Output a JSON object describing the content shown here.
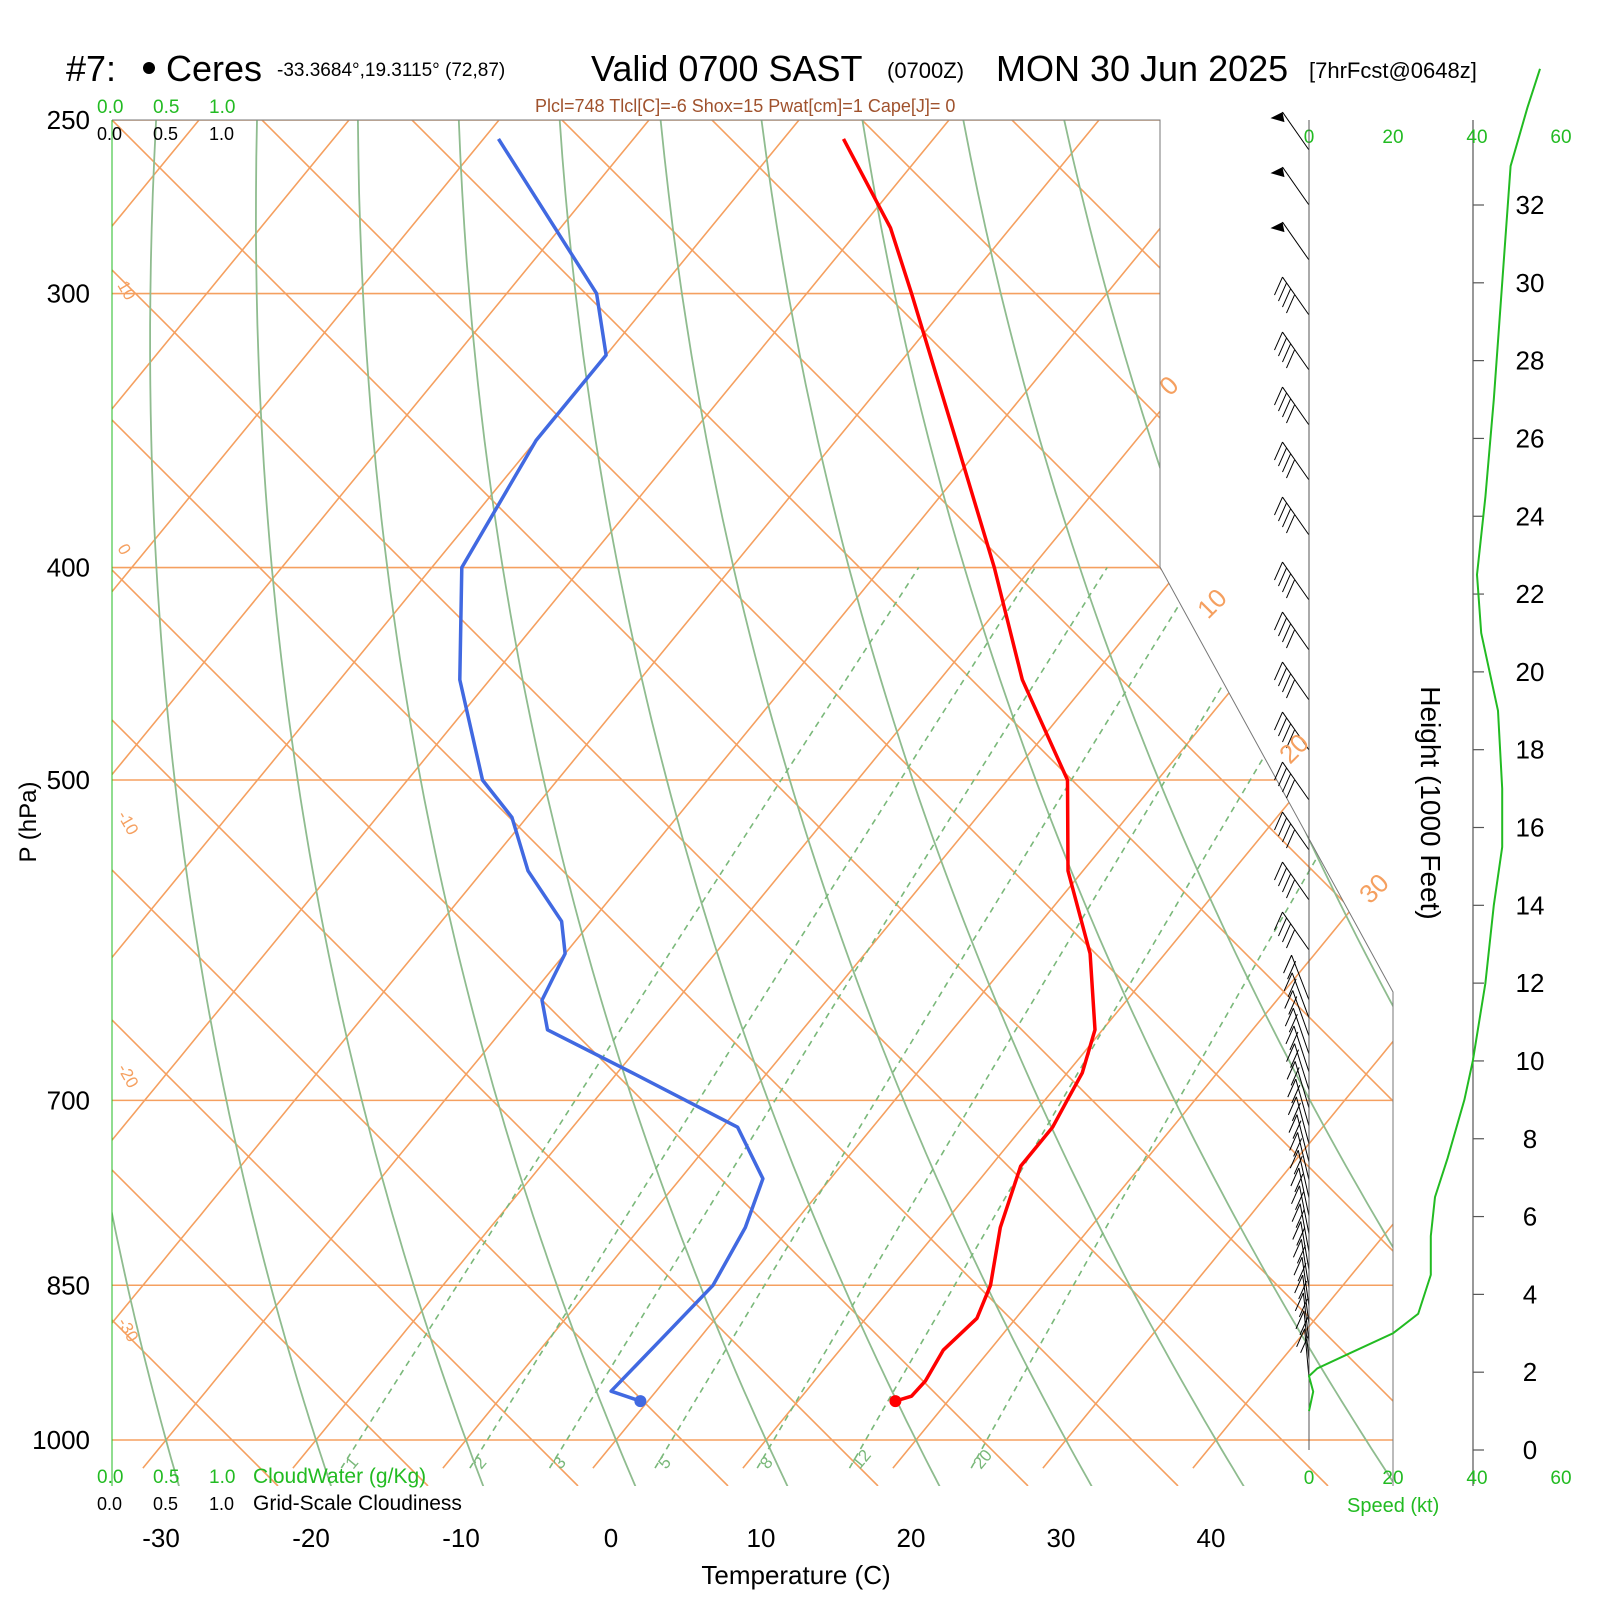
{
  "title": {
    "station_id": "#7:",
    "station_name": "Ceres",
    "coords": "-33.3684°,19.3115° (72,87)",
    "valid_main": "Valid 0700 SAST",
    "valid_zulu": "(0700Z)",
    "date": "MON 30 Jun 2025",
    "forecast": "[7hrFcst@0648z]"
  },
  "indices_line": "Plcl=748 Tlcl[C]=-6 Shox=15 Pwat[cm]=1 Cape[J]= 0",
  "axes": {
    "pressure_label": "P (hPa)",
    "temperature_label": "Temperature (C)",
    "height_label": "Height (1000 Feet)",
    "speed_label": "Speed (kt)",
    "cloudwater_label": "CloudWater (g/Kg)",
    "cloudiness_label": "Grid-Scale Cloudiness",
    "pressure_ticks": [
      "250",
      "300",
      "400",
      "500",
      "700",
      "850",
      "1000"
    ],
    "temperature_ticks": [
      "-30",
      "-20",
      "-10",
      "0",
      "10",
      "20",
      "30",
      "40"
    ],
    "height_ticks": [
      "0",
      "2",
      "4",
      "6",
      "8",
      "10",
      "12",
      "14",
      "16",
      "18",
      "20",
      "22",
      "24",
      "26",
      "28",
      "30",
      "32"
    ],
    "speed_ticks": [
      "0",
      "20",
      "40",
      "60"
    ],
    "cloud_scale_ticks": [
      "0.0",
      "0.5",
      "1.0"
    ],
    "isotherm_labels": [
      "10",
      "0",
      "-10",
      "-20",
      "-30",
      "0",
      "10",
      "20",
      "30"
    ],
    "mixing_ratio_labels": [
      "1",
      "2",
      "3",
      "5",
      "8",
      "12",
      "20"
    ]
  },
  "colors": {
    "temperature": "#ff0000",
    "dewpoint": "#4169e1",
    "isotherm": "#f5a060",
    "dry_adiabat": "#8fbc8f",
    "mixing_ratio": "#7ab87a",
    "speed_profile": "#22bb22",
    "indices": "#a0522d"
  },
  "chart_data": {
    "type": "skew-t",
    "pressure_range_hpa": [
      1030,
      250
    ],
    "temperature_range_c": [
      -33,
      36
    ],
    "log_pressure": true,
    "temperature_profile": [
      {
        "p": 960,
        "t": 16.5
      },
      {
        "p": 955,
        "t": 17.3
      },
      {
        "p": 940,
        "t": 17.4
      },
      {
        "p": 910,
        "t": 16.9
      },
      {
        "p": 880,
        "t": 17.4
      },
      {
        "p": 850,
        "t": 16.5
      },
      {
        "p": 800,
        "t": 14.0
      },
      {
        "p": 750,
        "t": 12.0
      },
      {
        "p": 720,
        "t": 12.0
      },
      {
        "p": 700,
        "t": 11.5
      },
      {
        "p": 680,
        "t": 11.0
      },
      {
        "p": 650,
        "t": 9.5
      },
      {
        "p": 600,
        "t": 5.0
      },
      {
        "p": 550,
        "t": -1.0
      },
      {
        "p": 500,
        "t": -6.0
      },
      {
        "p": 450,
        "t": -14.5
      },
      {
        "p": 400,
        "t": -22.5
      },
      {
        "p": 350,
        "t": -32.0
      },
      {
        "p": 300,
        "t": -43.0
      },
      {
        "p": 280,
        "t": -48.0
      },
      {
        "p": 255,
        "t": -56.0
      }
    ],
    "dewpoint_profile": [
      {
        "p": 960,
        "t": -0.5
      },
      {
        "p": 950,
        "t": -3.0
      },
      {
        "p": 900,
        "t": -2.5
      },
      {
        "p": 850,
        "t": -2.0
      },
      {
        "p": 800,
        "t": -3.0
      },
      {
        "p": 760,
        "t": -4.5
      },
      {
        "p": 720,
        "t": -9.0
      },
      {
        "p": 680,
        "t": -19.0
      },
      {
        "p": 650,
        "t": -27.0
      },
      {
        "p": 630,
        "t": -29.0
      },
      {
        "p": 600,
        "t": -30.0
      },
      {
        "p": 580,
        "t": -32.0
      },
      {
        "p": 550,
        "t": -37.0
      },
      {
        "p": 520,
        "t": -41.0
      },
      {
        "p": 500,
        "t": -45.0
      },
      {
        "p": 450,
        "t": -52.0
      },
      {
        "p": 400,
        "t": -58.0
      },
      {
        "p": 350,
        "t": -60.0
      },
      {
        "p": 320,
        "t": -60.0
      },
      {
        "p": 300,
        "t": -64.0
      },
      {
        "p": 255,
        "t": -79.0
      }
    ],
    "isotherms_c": [
      -100,
      -90,
      -80,
      -70,
      -60,
      -50,
      -40,
      -30,
      -20,
      -10,
      0,
      10,
      20,
      30,
      40
    ],
    "dry_adiabats_c": [
      -40,
      -30,
      -20,
      -10,
      0,
      10,
      20,
      30,
      40,
      50,
      60,
      70
    ],
    "mixing_ratios_gkg": [
      1,
      2,
      3,
      5,
      8,
      12,
      20
    ],
    "wind_speed_profile_kt": [
      {
        "h": 1.0,
        "s": 0
      },
      {
        "h": 1.5,
        "s": 1
      },
      {
        "h": 1.9,
        "s": 0
      },
      {
        "h": 2.1,
        "s": 2
      },
      {
        "h": 2.5,
        "s": 10
      },
      {
        "h": 3.0,
        "s": 20
      },
      {
        "h": 3.5,
        "s": 26
      },
      {
        "h": 4.5,
        "s": 29
      },
      {
        "h": 5.5,
        "s": 29
      },
      {
        "h": 6.5,
        "s": 30
      },
      {
        "h": 7.5,
        "s": 33
      },
      {
        "h": 9.0,
        "s": 37
      },
      {
        "h": 10.0,
        "s": 39
      },
      {
        "h": 12.0,
        "s": 42
      },
      {
        "h": 14.0,
        "s": 44
      },
      {
        "h": 15.5,
        "s": 46
      },
      {
        "h": 17.0,
        "s": 46
      },
      {
        "h": 19.0,
        "s": 45
      },
      {
        "h": 21.0,
        "s": 41
      },
      {
        "h": 22.5,
        "s": 40
      },
      {
        "h": 24.5,
        "s": 42
      },
      {
        "h": 27.0,
        "s": 44
      },
      {
        "h": 30.0,
        "s": 46
      },
      {
        "h": 33.0,
        "s": 48
      },
      {
        "h": 34.5,
        "s": 52
      },
      {
        "h": 35.5,
        "s": 55
      }
    ]
  }
}
